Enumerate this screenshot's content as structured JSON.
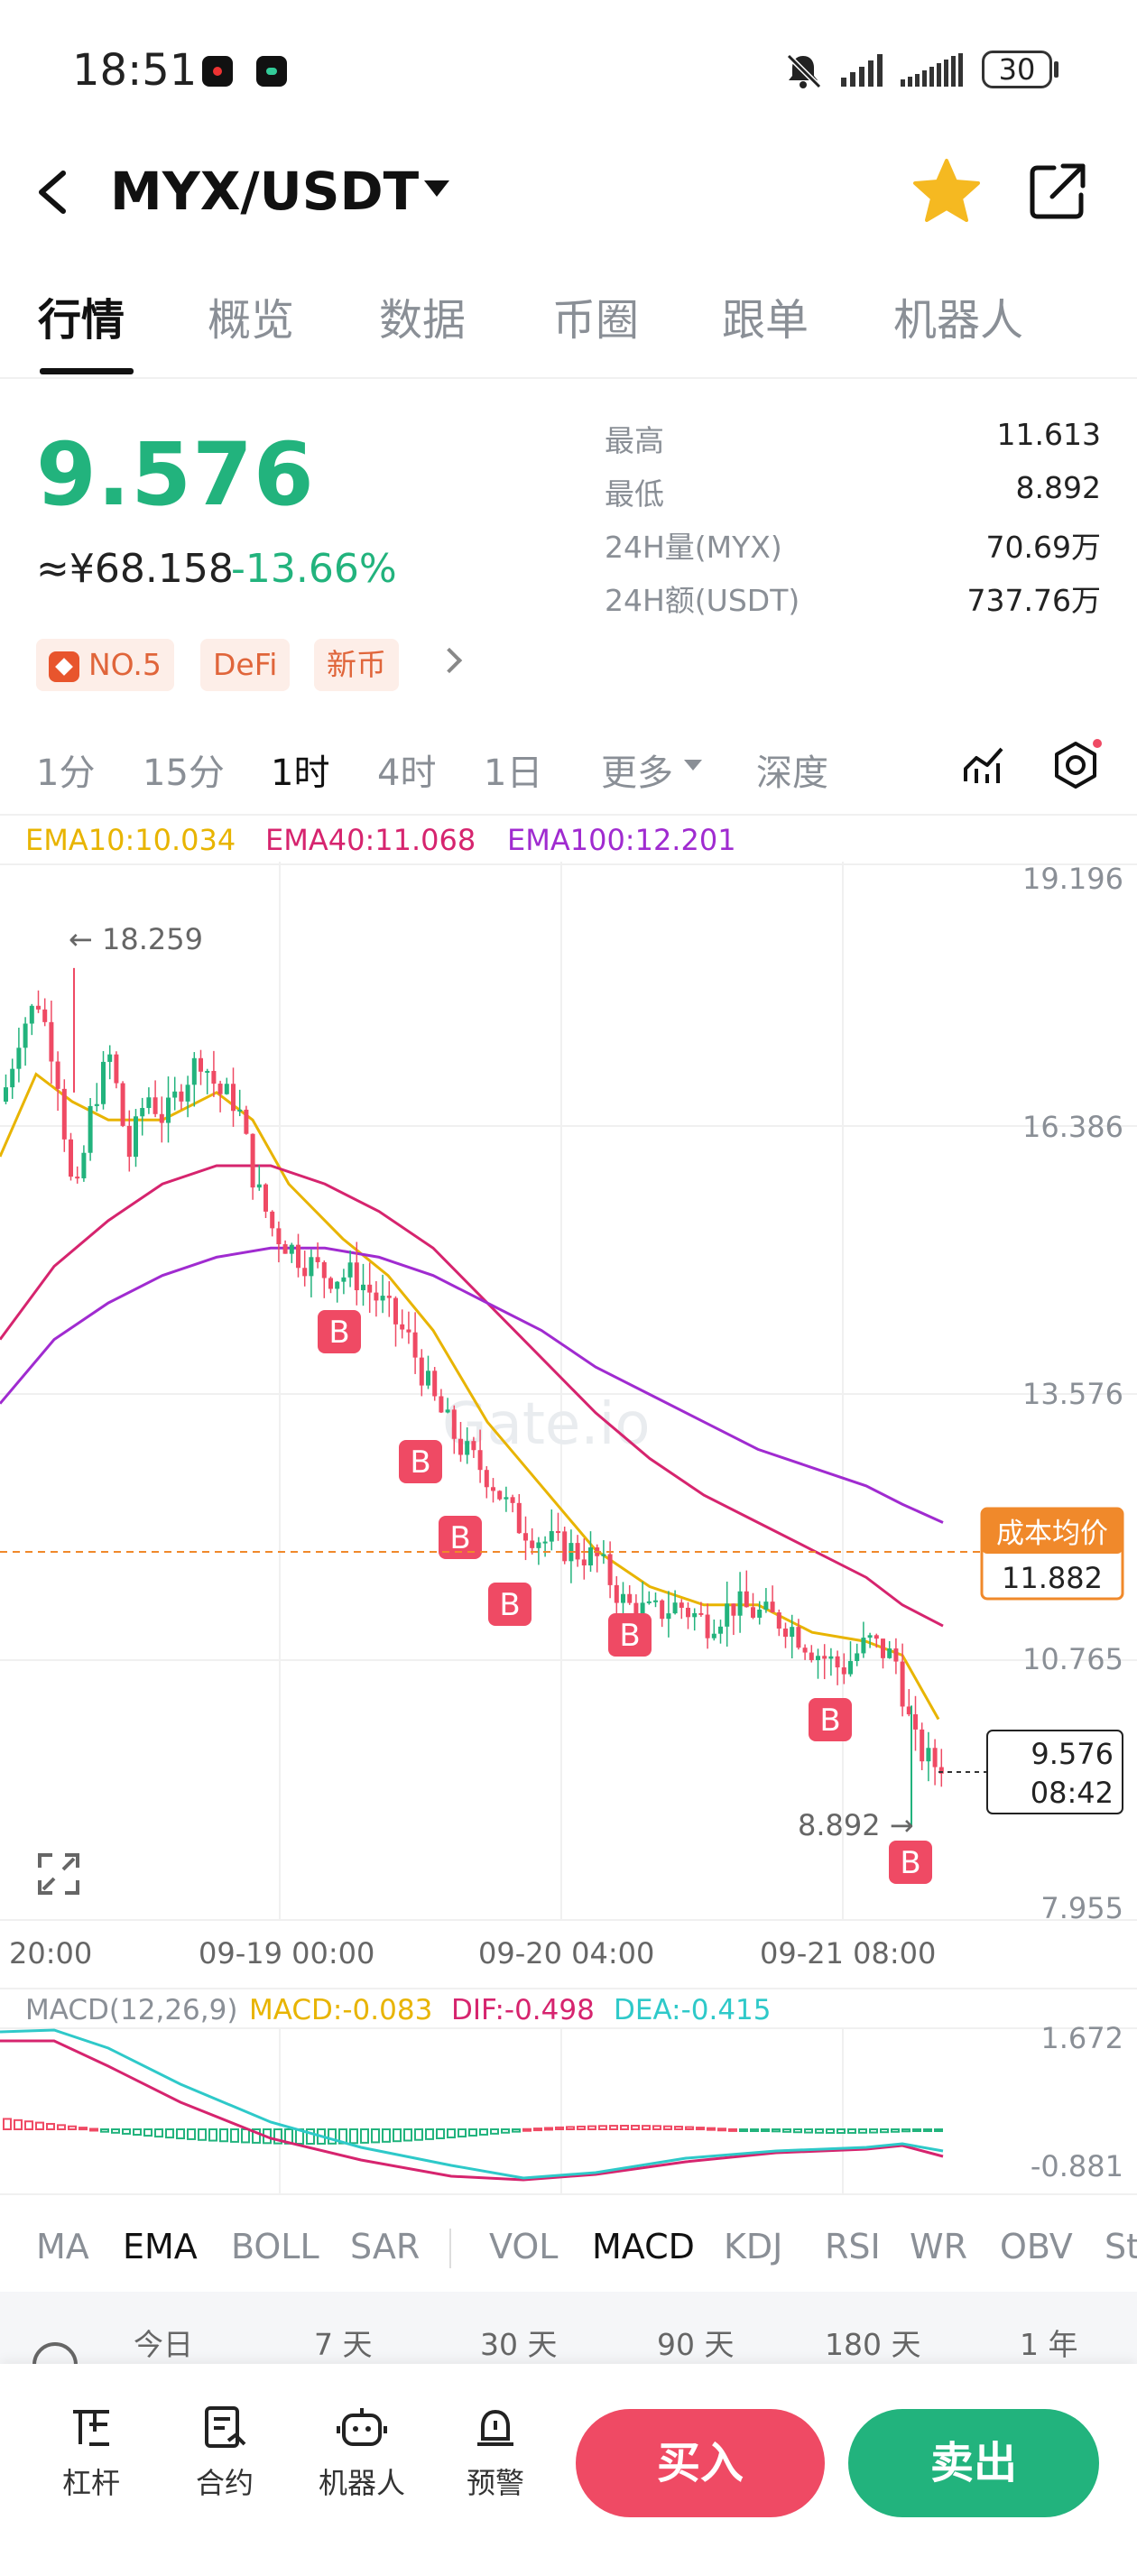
{
  "status_bar": {
    "time": "18:51",
    "battery": "30"
  },
  "header": {
    "pair": "MYX/USDT"
  },
  "tabs": [
    "行情",
    "概览",
    "数据",
    "币圈",
    "跟单",
    "机器人"
  ],
  "ticker": {
    "price": "9.576",
    "cny": "≈¥68.158",
    "change": "-13.66%",
    "stats": [
      {
        "label": "最高",
        "value": "11.613"
      },
      {
        "label": "最低",
        "value": "8.892"
      },
      {
        "label": "24H量(MYX)",
        "value": "70.69万"
      },
      {
        "label": "24H额(USDT)",
        "value": "737.76万"
      }
    ],
    "tags": [
      "NO.5",
      "DeFi",
      "新币"
    ]
  },
  "intervals": [
    "1分",
    "15分",
    "1时",
    "4时",
    "1日",
    "更多",
    "深度"
  ],
  "ema_legend": {
    "ema10": "EMA10:10.034",
    "ema40": "EMA40:11.068",
    "ema100": "EMA100:12.201"
  },
  "colors": {
    "up": "#22b37d",
    "down": "#ef4a64",
    "ema10": "#e8b400",
    "ema40": "#d6246e",
    "ema100": "#a02bd0",
    "macd_dif": "#d6246e",
    "macd_dea": "#2ec9c9",
    "cost_line": "#f0892b"
  },
  "chart_data": {
    "type": "candlestick",
    "price_axis": [
      "19.196",
      "16.386",
      "13.576",
      "10.765",
      "7.955"
    ],
    "time_axis": [
      "20:00",
      "09-19 00:00",
      "09-20 04:00",
      "09-21 08:00"
    ],
    "high_marker": "18.259",
    "low_marker": "8.892",
    "current_price": "9.576",
    "countdown": "08:42",
    "cost_label": "成本均价",
    "cost_value": "11.882",
    "buy_marker": "B",
    "watermark": "Gate.io",
    "macd_title": "MACD(12,26,9)",
    "macd_value": "MACD:-0.083",
    "dif_value": "DIF:-0.498",
    "dea_value": "DEA:-0.415",
    "macd_axis": [
      "1.672",
      "-0.881"
    ]
  },
  "indicators": [
    "MA",
    "EMA",
    "BOLL",
    "SAR",
    "VOL",
    "MACD",
    "KDJ",
    "RSI",
    "WR",
    "OBV",
    "St"
  ],
  "ranges": [
    "今日",
    "7 天",
    "30 天",
    "90 天",
    "180 天",
    "1 年"
  ],
  "bottom_nav": {
    "items": [
      "杠杆",
      "合约",
      "机器人",
      "预警"
    ],
    "buy": "买入",
    "sell": "卖出"
  }
}
